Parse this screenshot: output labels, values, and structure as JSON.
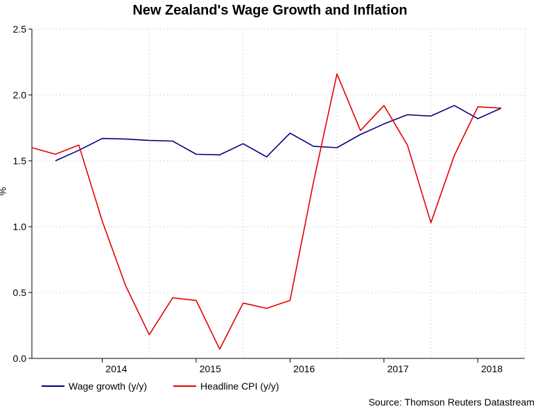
{
  "chart_data": {
    "type": "line",
    "title": "New Zealand's Wage Growth and Inflation",
    "ylabel": "%",
    "xlabel": "",
    "ylim": [
      0.0,
      2.5
    ],
    "yticks": [
      "0.0",
      "0.5",
      "1.0",
      "1.5",
      "2.0",
      "2.5"
    ],
    "xticks": [
      "2014",
      "2015",
      "2016",
      "2017",
      "2018"
    ],
    "grid": true,
    "legend_position": "bottom-left",
    "series": [
      {
        "name": "Wage growth (y/y)",
        "color": "#000080",
        "points": [
          [
            "2013-Q3",
            1.5
          ],
          [
            "2013-Q4",
            1.58
          ],
          [
            "2014-Q1",
            1.67
          ],
          [
            "2014-Q2",
            1.665
          ],
          [
            "2014-Q3",
            1.655
          ],
          [
            "2014-Q4",
            1.65
          ],
          [
            "2015-Q1",
            1.55
          ],
          [
            "2015-Q2",
            1.545
          ],
          [
            "2015-Q3",
            1.63
          ],
          [
            "2015-Q4",
            1.53
          ],
          [
            "2016-Q1",
            1.71
          ],
          [
            "2016-Q2",
            1.61
          ],
          [
            "2016-Q3",
            1.6
          ],
          [
            "2016-Q4",
            1.7
          ],
          [
            "2017-Q1",
            1.78
          ],
          [
            "2017-Q2",
            1.85
          ],
          [
            "2017-Q3",
            1.84
          ],
          [
            "2017-Q4",
            1.92
          ],
          [
            "2018-Q1",
            1.82
          ],
          [
            "2018-Q2",
            1.9
          ]
        ]
      },
      {
        "name": "Headline CPI (y/y)",
        "color": "#e00000",
        "points": [
          [
            "2013-Q2",
            1.6
          ],
          [
            "2013-Q3",
            1.55
          ],
          [
            "2013-Q4",
            1.62
          ],
          [
            "2014-Q1",
            1.04
          ],
          [
            "2014-Q2",
            0.55
          ],
          [
            "2014-Q3",
            0.18
          ],
          [
            "2014-Q4",
            0.46
          ],
          [
            "2015-Q1",
            0.44
          ],
          [
            "2015-Q2",
            0.07
          ],
          [
            "2015-Q3",
            0.42
          ],
          [
            "2015-Q4",
            0.38
          ],
          [
            "2016-Q1",
            0.44
          ],
          [
            "2016-Q2",
            1.34
          ],
          [
            "2016-Q3",
            2.16
          ],
          [
            "2016-Q4",
            1.73
          ],
          [
            "2017-Q1",
            1.92
          ],
          [
            "2017-Q2",
            1.62
          ],
          [
            "2017-Q3",
            1.03
          ],
          [
            "2017-Q4",
            1.54
          ],
          [
            "2018-Q1",
            1.91
          ],
          [
            "2018-Q2",
            1.9
          ]
        ]
      }
    ]
  },
  "source": "Source: Thomson Reuters Datastream"
}
